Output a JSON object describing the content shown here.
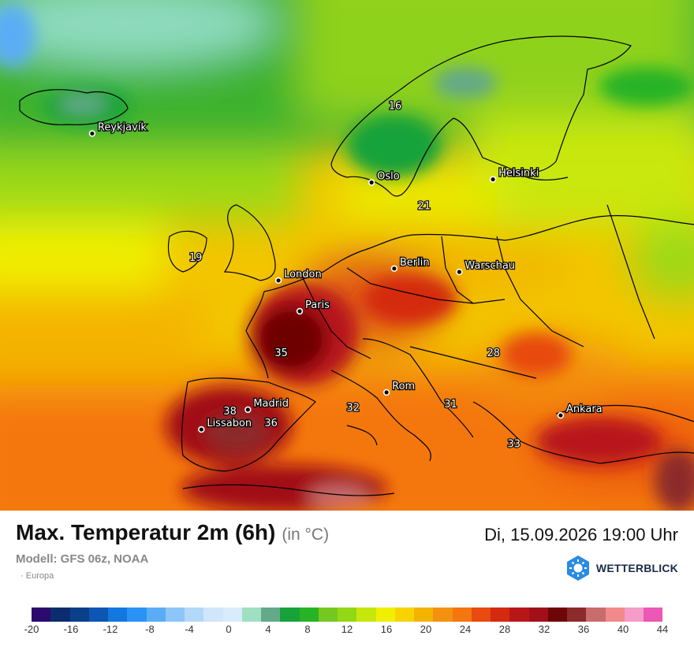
{
  "map": {
    "cities": [
      {
        "name": "Reykjavík",
        "lon": -21.9,
        "lat": 64.1
      },
      {
        "name": "Oslo",
        "lon": 10.75,
        "lat": 59.9
      },
      {
        "name": "Helsinki",
        "lon": 24.94,
        "lat": 60.17
      },
      {
        "name": "London",
        "lon": -0.13,
        "lat": 51.5
      },
      {
        "name": "Berlin",
        "lon": 13.4,
        "lat": 52.52
      },
      {
        "name": "Warschau",
        "lon": 21.0,
        "lat": 52.23
      },
      {
        "name": "Paris",
        "lon": 2.35,
        "lat": 48.86
      },
      {
        "name": "Madrid",
        "lon": -3.7,
        "lat": 40.42
      },
      {
        "name": "Lissabon",
        "lon": -9.14,
        "lat": 38.72
      },
      {
        "name": "Rom",
        "lon": 12.5,
        "lat": 41.9
      },
      {
        "name": "Ankara",
        "lon": 32.85,
        "lat": 39.93
      }
    ],
    "values": [
      {
        "label": "16",
        "lon": 13.5,
        "lat": 66.2
      },
      {
        "label": "21",
        "lon": 16.9,
        "lat": 57.6
      },
      {
        "label": "19",
        "lon": -9.8,
        "lat": 53.2
      },
      {
        "label": "35",
        "lon": 0.2,
        "lat": 45.0
      },
      {
        "label": "38",
        "lon": -5.8,
        "lat": 40.0
      },
      {
        "label": "36",
        "lon": -1.0,
        "lat": 39.0
      },
      {
        "label": "32",
        "lon": 8.6,
        "lat": 40.3
      },
      {
        "label": "31",
        "lon": 20.0,
        "lat": 40.6
      },
      {
        "label": "28",
        "lon": 25.0,
        "lat": 45.0
      },
      {
        "label": "33",
        "lon": 27.4,
        "lat": 37.2
      }
    ]
  },
  "header": {
    "title": "Max. Temperatur 2m (6h)",
    "unit": "(in °C)",
    "datetime": "Di, 15.09.2026 19:00 Uhr",
    "model": "Modell: GFS 06z, NOAA",
    "region": "Europa",
    "brand": "WETTERBLICK"
  },
  "legend": {
    "colors": [
      "#2b0b6e",
      "#0a2d6e",
      "#0b3f8a",
      "#0d56b4",
      "#1476e0",
      "#2b92f5",
      "#5aadf5",
      "#8cc6f8",
      "#b3d8fa",
      "#cfe6fb",
      "#d8ecfb",
      "#9fe0c2",
      "#64a989",
      "#17a33a",
      "#27b325",
      "#75c81f",
      "#93d715",
      "#c6e70b",
      "#f0ef00",
      "#f7d400",
      "#f4b300",
      "#f39211",
      "#f4760f",
      "#e84a10",
      "#d42a10",
      "#b8171a",
      "#a11019",
      "#6e0506",
      "#8c2b2b",
      "#c96c6c",
      "#f28a8a",
      "#f59cc8",
      "#ec58b6"
    ],
    "ticks": [
      "-20",
      "-16",
      "-12",
      "-8",
      "-4",
      "0",
      "4",
      "8",
      "12",
      "16",
      "20",
      "24",
      "28",
      "32",
      "36",
      "40",
      "44"
    ]
  }
}
